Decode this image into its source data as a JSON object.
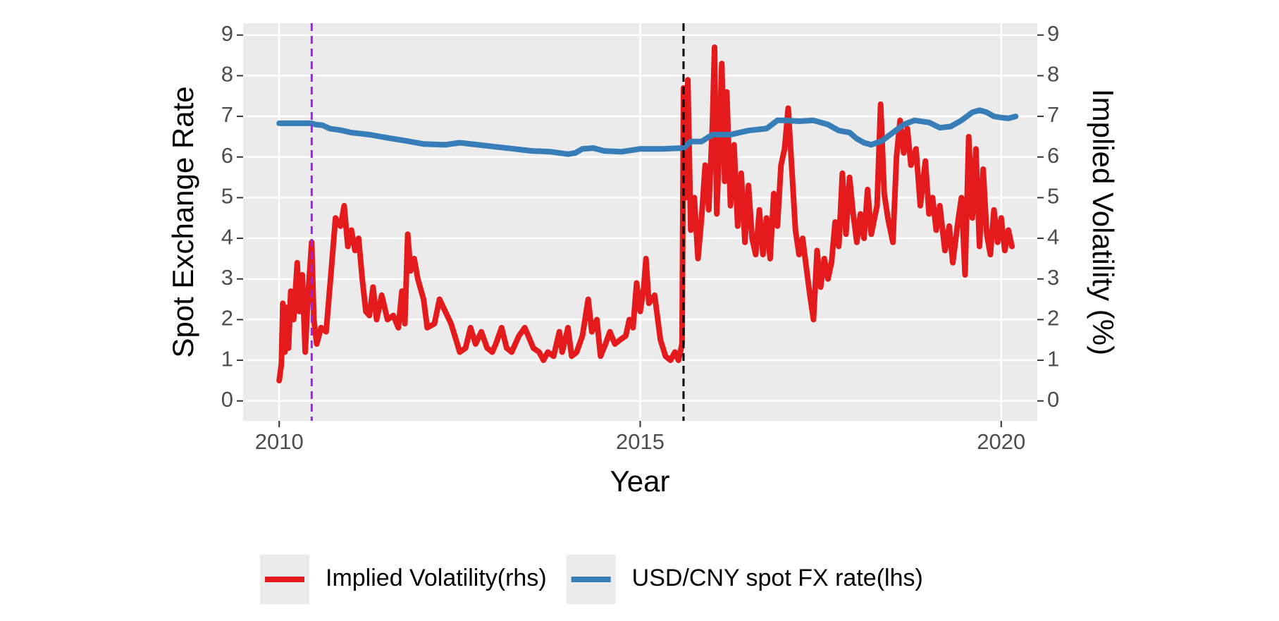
{
  "chart_data": {
    "type": "line",
    "x_label": "Year",
    "y_label": "Spot Exchange Rate",
    "y2_label": "Implied Volatility (%)",
    "xlim": [
      2009.5,
      2020.5
    ],
    "xticks": [
      2010,
      2015,
      2020
    ],
    "ylim": [
      -0.49,
      9.29
    ],
    "yticks": [
      0,
      1,
      2,
      3,
      4,
      5,
      6,
      7,
      8,
      9
    ],
    "y2lim": [
      -0.49,
      9.29
    ],
    "y2ticks": [
      0,
      1,
      2,
      3,
      4,
      5,
      6,
      7,
      8,
      9
    ],
    "grid": true,
    "legend": "bottom",
    "vlines": [
      {
        "x": 2010.45,
        "color": "#a020f0"
      },
      {
        "x": 2015.6,
        "color": "#000000"
      }
    ],
    "series": [
      {
        "name": "Implied Volatility(rhs)",
        "color": "#e41a1c",
        "axis": "y2",
        "x": [
          2010.0,
          2010.03,
          2010.05,
          2010.08,
          2010.1,
          2010.13,
          2010.16,
          2010.2,
          2010.25,
          2010.28,
          2010.32,
          2010.36,
          2010.4,
          2010.45,
          2010.48,
          2010.52,
          2010.58,
          2010.65,
          2010.72,
          2010.78,
          2010.85,
          2010.9,
          2010.95,
          2011.0,
          2011.05,
          2011.1,
          2011.15,
          2011.2,
          2011.25,
          2011.3,
          2011.35,
          2011.42,
          2011.5,
          2011.58,
          2011.65,
          2011.7,
          2011.74,
          2011.78,
          2011.82,
          2011.87,
          2011.92,
          2012.0,
          2012.05,
          2012.15,
          2012.22,
          2012.3,
          2012.38,
          2012.45,
          2012.5,
          2012.58,
          2012.65,
          2012.72,
          2012.8,
          2012.88,
          2012.95,
          2013.0,
          2013.08,
          2013.15,
          2013.22,
          2013.32,
          2013.4,
          2013.45,
          2013.52,
          2013.6,
          2013.66,
          2013.72,
          2013.8,
          2013.88,
          2013.92,
          2014.0,
          2014.05,
          2014.12,
          2014.2,
          2014.28,
          2014.33,
          2014.4,
          2014.45,
          2014.52,
          2014.58,
          2014.65,
          2014.72,
          2014.8,
          2014.85,
          2014.9,
          2014.95,
          2015.0,
          2015.05,
          2015.08,
          2015.12,
          2015.2,
          2015.28,
          2015.35,
          2015.42,
          2015.48,
          2015.53,
          2015.58,
          2015.6,
          2015.63,
          2015.66,
          2015.7,
          2015.75,
          2015.8,
          2015.85,
          2015.9,
          2015.95,
          2016.0,
          2016.03,
          2016.06,
          2016.1,
          2016.13,
          2016.17,
          2016.2,
          2016.25,
          2016.3,
          2016.35,
          2016.4,
          2016.45,
          2016.5,
          2016.55,
          2016.6,
          2016.65,
          2016.7,
          2016.75,
          2016.8,
          2016.85,
          2016.9,
          2016.95,
          2017.0,
          2017.05,
          2017.1,
          2017.15,
          2017.2,
          2017.25,
          2017.3,
          2017.35,
          2017.4,
          2017.45,
          2017.5,
          2017.55,
          2017.6,
          2017.65,
          2017.7,
          2017.75,
          2017.8,
          2017.85,
          2017.9,
          2017.95,
          2018.0,
          2018.05,
          2018.1,
          2018.15,
          2018.2,
          2018.28,
          2018.33,
          2018.38,
          2018.43,
          2018.5,
          2018.55,
          2018.6,
          2018.65,
          2018.7,
          2018.75,
          2018.82,
          2018.88,
          2018.95,
          2019.0,
          2019.05,
          2019.1,
          2019.15,
          2019.22,
          2019.28,
          2019.33,
          2019.4,
          2019.45,
          2019.5,
          2019.55,
          2019.6,
          2019.65,
          2019.7,
          2019.75,
          2019.8,
          2019.85,
          2019.9,
          2019.95,
          2020.0,
          2020.05,
          2020.1,
          2020.15
        ],
        "values": [
          0.5,
          0.9,
          2.4,
          1.2,
          2.3,
          1.3,
          2.7,
          2.0,
          3.4,
          2.2,
          3.1,
          1.2,
          2.6,
          3.9,
          2.0,
          1.4,
          1.8,
          1.7,
          3.2,
          4.5,
          4.3,
          4.8,
          3.8,
          4.2,
          3.7,
          4.0,
          3.0,
          2.2,
          2.1,
          2.8,
          2.0,
          2.6,
          2.0,
          2.1,
          1.8,
          2.7,
          1.9,
          4.1,
          3.2,
          3.5,
          3.0,
          2.5,
          1.8,
          1.9,
          2.5,
          2.2,
          1.9,
          1.5,
          1.2,
          1.3,
          1.8,
          1.4,
          1.7,
          1.3,
          1.2,
          1.4,
          1.8,
          1.3,
          1.2,
          1.6,
          1.8,
          1.6,
          1.3,
          1.2,
          1.0,
          1.2,
          1.1,
          1.7,
          1.2,
          1.8,
          1.1,
          1.2,
          1.6,
          2.5,
          1.7,
          2.0,
          1.1,
          1.4,
          1.7,
          1.4,
          1.5,
          1.6,
          2.0,
          1.8,
          2.9,
          2.2,
          2.8,
          3.5,
          2.4,
          2.6,
          1.5,
          1.1,
          1.0,
          1.2,
          1.0,
          1.4,
          7.7,
          5.0,
          7.9,
          4.2,
          5.0,
          3.5,
          4.5,
          5.8,
          4.7,
          6.8,
          8.7,
          4.6,
          6.5,
          8.3,
          5.4,
          7.6,
          4.8,
          6.3,
          4.3,
          5.6,
          3.9,
          5.3,
          4.0,
          3.6,
          4.7,
          3.6,
          4.5,
          3.5,
          5.1,
          4.3,
          5.8,
          6.2,
          7.2,
          5.7,
          4.2,
          3.6,
          4.0,
          3.3,
          2.6,
          2.0,
          3.7,
          2.8,
          3.5,
          3.0,
          3.4,
          4.4,
          3.8,
          5.6,
          4.1,
          5.5,
          4.6,
          3.9,
          4.6,
          4.0,
          5.2,
          4.1,
          4.8,
          7.3,
          5.1,
          4.5,
          3.9,
          6.0,
          6.9,
          6.1,
          6.7,
          5.8,
          6.2,
          4.8,
          5.9,
          4.6,
          5.0,
          4.2,
          4.8,
          3.7,
          4.3,
          3.4,
          4.4,
          5.0,
          3.1,
          6.5,
          4.5,
          6.2,
          3.8,
          5.7,
          4.1,
          3.6,
          4.7,
          3.9,
          4.5,
          3.7,
          4.2,
          3.8
        ]
      },
      {
        "name": "USD/CNY spot FX rate(lhs)",
        "color": "#377eb8",
        "axis": "y",
        "x": [
          2010.0,
          2010.45,
          2010.5,
          2010.6,
          2010.7,
          2010.85,
          2011.0,
          2011.25,
          2011.5,
          2011.75,
          2012.0,
          2012.3,
          2012.5,
          2012.75,
          2013.0,
          2013.25,
          2013.5,
          2013.75,
          2014.0,
          2014.1,
          2014.2,
          2014.35,
          2014.5,
          2014.75,
          2015.0,
          2015.3,
          2015.6,
          2015.7,
          2015.85,
          2016.0,
          2016.25,
          2016.5,
          2016.75,
          2016.9,
          2017.0,
          2017.2,
          2017.4,
          2017.6,
          2017.75,
          2017.9,
          2018.0,
          2018.1,
          2018.2,
          2018.35,
          2018.5,
          2018.65,
          2018.8,
          2019.0,
          2019.15,
          2019.3,
          2019.45,
          2019.6,
          2019.7,
          2019.8,
          2019.9,
          2020.0,
          2020.1,
          2020.2
        ],
        "values": [
          6.83,
          6.83,
          6.8,
          6.78,
          6.7,
          6.66,
          6.6,
          6.55,
          6.47,
          6.4,
          6.32,
          6.3,
          6.35,
          6.3,
          6.25,
          6.2,
          6.15,
          6.13,
          6.07,
          6.1,
          6.2,
          6.22,
          6.15,
          6.13,
          6.2,
          6.2,
          6.22,
          6.38,
          6.38,
          6.55,
          6.55,
          6.65,
          6.7,
          6.9,
          6.9,
          6.88,
          6.9,
          6.8,
          6.65,
          6.6,
          6.45,
          6.35,
          6.3,
          6.4,
          6.6,
          6.8,
          6.9,
          6.85,
          6.72,
          6.75,
          6.9,
          7.1,
          7.15,
          7.1,
          7.0,
          6.97,
          6.95,
          7.0
        ]
      }
    ]
  }
}
